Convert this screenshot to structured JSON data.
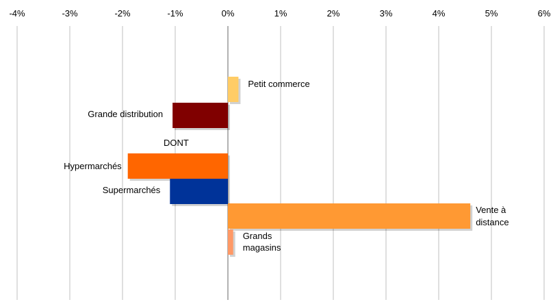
{
  "chart_data": {
    "type": "bar",
    "orientation": "horizontal",
    "xlim": [
      -4,
      6
    ],
    "xticks": [
      "-4%",
      "-3%",
      "-2%",
      "-1%",
      "0%",
      "1%",
      "2%",
      "3%",
      "4%",
      "5%",
      "6%"
    ],
    "x_axis_position": "top",
    "grid": true,
    "bars": [
      {
        "label": [
          "Petit commerce"
        ],
        "value": 0.2,
        "color": "#FFCC66"
      },
      {
        "label": [
          "Grande distribution"
        ],
        "value": -1.05,
        "color": "#800000"
      },
      {
        "label": [
          "Hypermarchés"
        ],
        "value": -1.9,
        "color": "#FF6600"
      },
      {
        "label": [
          "Supermarchés"
        ],
        "value": -1.1,
        "color": "#003399"
      },
      {
        "label": [
          "Vente à",
          "distance"
        ],
        "value": 4.6,
        "color": "#FF9933"
      },
      {
        "label": [
          "Grands",
          "magasins"
        ],
        "value": 0.1,
        "color": "#FF9966"
      }
    ],
    "annotations": [
      "DONT"
    ]
  }
}
